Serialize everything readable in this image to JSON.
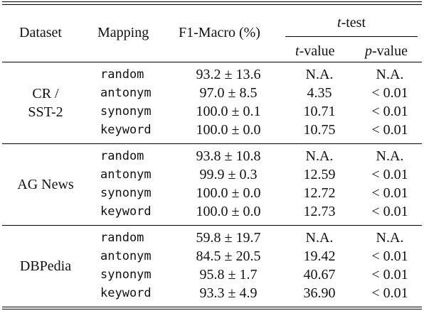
{
  "header": {
    "dataset": "Dataset",
    "mapping": "Mapping",
    "f1": "F1-Macro (%)",
    "ttest_italic": "t",
    "ttest_rest": "-test",
    "tvalue_italic": "t",
    "tvalue_rest": "-value",
    "pvalue_italic": "p",
    "pvalue_rest": "-value"
  },
  "groups": [
    {
      "name_lines": [
        "CR /",
        "SST-2"
      ],
      "rows": [
        {
          "mapping": "random",
          "f1": "93.2 ± 13.6",
          "t": "N.A.",
          "p": "N.A."
        },
        {
          "mapping": "antonym",
          "f1": "97.0 ± 8.5",
          "t": "4.35",
          "p": "< 0.01"
        },
        {
          "mapping": "synonym",
          "f1": "100.0 ± 0.1",
          "t": "10.71",
          "p": "< 0.01"
        },
        {
          "mapping": "keyword",
          "f1": "100.0 ± 0.0",
          "t": "10.75",
          "p": "< 0.01"
        }
      ]
    },
    {
      "name_lines": [
        "AG News"
      ],
      "rows": [
        {
          "mapping": "random",
          "f1": "93.8 ± 10.8",
          "t": "N.A.",
          "p": "N.A."
        },
        {
          "mapping": "antonym",
          "f1": "99.9 ± 0.3",
          "t": "12.59",
          "p": "< 0.01"
        },
        {
          "mapping": "synonym",
          "f1": "100.0 ± 0.0",
          "t": "12.72",
          "p": "< 0.01"
        },
        {
          "mapping": "keyword",
          "f1": "100.0 ± 0.0",
          "t": "12.73",
          "p": "< 0.01"
        }
      ]
    },
    {
      "name_lines": [
        "DBPedia"
      ],
      "rows": [
        {
          "mapping": "random",
          "f1": "59.8 ± 19.7",
          "t": "N.A.",
          "p": "N.A."
        },
        {
          "mapping": "antonym",
          "f1": "84.5 ± 20.5",
          "t": "19.42",
          "p": "< 0.01"
        },
        {
          "mapping": "synonym",
          "f1": "95.8 ± 1.7",
          "t": "40.67",
          "p": "< 0.01"
        },
        {
          "mapping": "keyword",
          "f1": "93.3 ± 4.9",
          "t": "36.90",
          "p": "< 0.01"
        }
      ]
    }
  ]
}
